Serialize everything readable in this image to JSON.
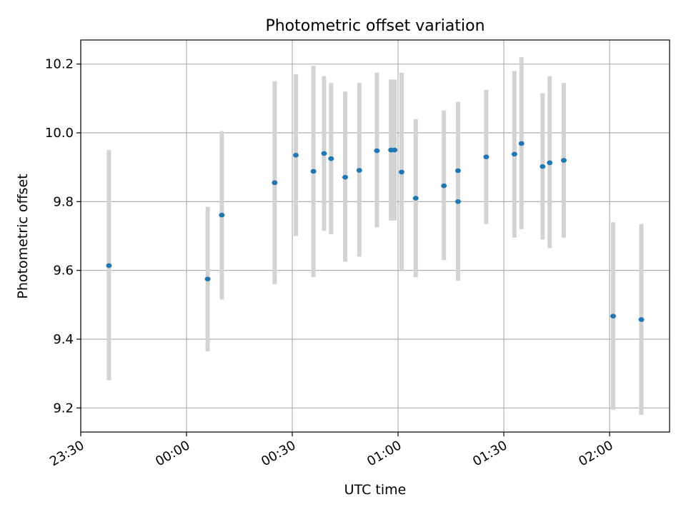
{
  "chart_data": {
    "type": "scatter",
    "title": "Photometric offset variation",
    "xlabel": "UTC time",
    "ylabel": "Photometric offset",
    "x_ticks": [
      "23:30",
      "00:00",
      "00:30",
      "01:00",
      "01:30",
      "02:00"
    ],
    "y_ticks": [
      "9.2",
      "9.4",
      "9.6",
      "9.8",
      "10.0",
      "10.2"
    ],
    "xlim": [
      "23:30",
      "02:17"
    ],
    "ylim": [
      9.13,
      10.27
    ],
    "grid": true,
    "colors": {
      "point": "#1f77b4",
      "errorbar": "#d3d3d3",
      "grid": "#b0b0b0"
    },
    "points": [
      {
        "time": "23:38",
        "y": 9.614,
        "lo": 9.28,
        "hi": 9.95
      },
      {
        "time": "00:06",
        "y": 9.575,
        "lo": 9.365,
        "hi": 9.785
      },
      {
        "time": "00:10",
        "y": 9.761,
        "lo": 9.515,
        "hi": 10.005
      },
      {
        "time": "00:25",
        "y": 9.855,
        "lo": 9.56,
        "hi": 10.15
      },
      {
        "time": "00:31",
        "y": 9.935,
        "lo": 9.7,
        "hi": 10.17
      },
      {
        "time": "00:36",
        "y": 9.888,
        "lo": 9.58,
        "hi": 10.195
      },
      {
        "time": "00:39",
        "y": 9.94,
        "lo": 9.715,
        "hi": 10.165
      },
      {
        "time": "00:41",
        "y": 9.925,
        "lo": 9.705,
        "hi": 10.145
      },
      {
        "time": "00:45",
        "y": 9.871,
        "lo": 9.625,
        "hi": 10.12
      },
      {
        "time": "00:49",
        "y": 9.891,
        "lo": 9.64,
        "hi": 10.145
      },
      {
        "time": "00:54",
        "y": 9.948,
        "lo": 9.725,
        "hi": 10.175
      },
      {
        "time": "00:58",
        "y": 9.95,
        "lo": 9.745,
        "hi": 10.155
      },
      {
        "time": "00:59",
        "y": 9.95,
        "lo": 9.745,
        "hi": 10.155
      },
      {
        "time": "01:01",
        "y": 9.886,
        "lo": 9.6,
        "hi": 10.175
      },
      {
        "time": "01:05",
        "y": 9.81,
        "lo": 9.58,
        "hi": 10.04
      },
      {
        "time": "01:13",
        "y": 9.846,
        "lo": 9.63,
        "hi": 10.065
      },
      {
        "time": "01:17",
        "y": 9.8,
        "lo": 9.57,
        "hi": 10.03
      },
      {
        "time": "01:17",
        "y": 9.89,
        "lo": 9.69,
        "hi": 10.09
      },
      {
        "time": "01:25",
        "y": 9.93,
        "lo": 9.735,
        "hi": 10.125
      },
      {
        "time": "01:33",
        "y": 9.938,
        "lo": 9.695,
        "hi": 10.18
      },
      {
        "time": "01:35",
        "y": 9.969,
        "lo": 9.72,
        "hi": 10.22
      },
      {
        "time": "01:41",
        "y": 9.902,
        "lo": 9.69,
        "hi": 10.115
      },
      {
        "time": "01:43",
        "y": 9.913,
        "lo": 9.665,
        "hi": 10.165
      },
      {
        "time": "01:47",
        "y": 9.92,
        "lo": 9.695,
        "hi": 10.145
      },
      {
        "time": "02:01",
        "y": 9.467,
        "lo": 9.195,
        "hi": 9.74
      },
      {
        "time": "02:09",
        "y": 9.457,
        "lo": 9.18,
        "hi": 9.735
      }
    ]
  }
}
